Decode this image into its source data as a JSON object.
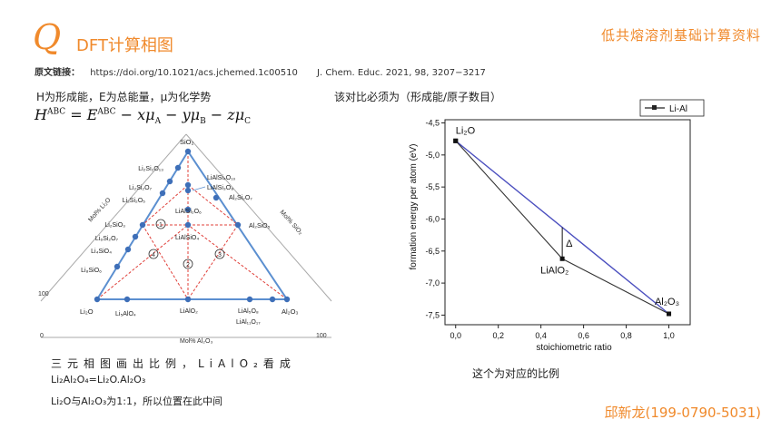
{
  "header": {
    "logo_letter": "Q",
    "title": "DFT计算相图",
    "top_right": "低共熔溶剂基础计算资料"
  },
  "reference": {
    "label": "原文链接：",
    "url": "https://doi.org/10.1021/acs.jchemed.1c00510",
    "citation": "J. Chem. Educ. 2021, 98, 3207−3217"
  },
  "definitions": {
    "text": "H为形成能，E为总能量，μ为化学势"
  },
  "mid_note": "该对比必须为（形成能/原子数目）",
  "explanations": {
    "line1": "三元相图画出比例，LiAlO₂看成",
    "line2": "Li₂Al₂O₄=Li₂O.Al₂O₃",
    "line3": "Li₂O与Al₂O₃为1:1，所以位置在此中间"
  },
  "chart_caption": "这个为对应的比例",
  "footer": "邱新龙(199-0790-5031)",
  "ternary": {
    "apex_top": "SiO₂",
    "apex_left": "Li₂O",
    "apex_right": "Al₂O₃",
    "left_edge_labels": [
      "Li₂Si₂O₁₃",
      "Li₂Si₂O₇",
      "Li₂Si₂O₅",
      "Li₂SiO₃",
      "Li₆Si₂O₇",
      "Li₄SiO₄",
      "Li₈SiO₆"
    ],
    "right_edge_labels": [
      "LiAlSi₄O₁₀",
      "LiAlSi₃O₈",
      "Al₂Si₂O₇",
      "Al₂SiO₅"
    ],
    "bottom_labels": [
      "Li₅AlO₄",
      "LiAlO₂",
      "LiAl₅O₈",
      "LiAl₁₁O₁₇"
    ],
    "inner_labels": [
      "LiAlSi₂O₆",
      "LiAlSiO₄"
    ],
    "region_numbers": [
      "1",
      "2",
      "3",
      "4"
    ],
    "axis_left": "Mol% Li₂O",
    "axis_right": "Mol% SiO₂",
    "axis_bottom": "Mol% Al₂O₃",
    "tick_0": "0",
    "tick_100": "100"
  },
  "chart_data": {
    "type": "line",
    "series": [
      {
        "name": "Li-Al",
        "x": [
          0.0,
          1.0
        ],
        "y": [
          -4.78,
          -7.48
        ]
      },
      {
        "name": "",
        "x": [
          0.0,
          0.5,
          1.0
        ],
        "y": [
          -4.78,
          -6.62,
          -7.48
        ]
      }
    ],
    "point_labels": [
      {
        "text": "Li₂O",
        "x": 0.0,
        "y": -4.78
      },
      {
        "text": "LiAlO₂",
        "x": 0.5,
        "y": -6.62
      },
      {
        "text": "Al₂O₃",
        "x": 1.0,
        "y": -7.48
      }
    ],
    "annotation": "Δ",
    "xlabel": "stoichiometric ratio",
    "ylabel": "formation energy per atom (eV)",
    "xlim": [
      -0.05,
      1.1
    ],
    "ylim": [
      -7.65,
      -4.45
    ],
    "xticks": [
      "0,0",
      "0,2",
      "0,4",
      "0,6",
      "0,8",
      "1,0"
    ],
    "yticks": [
      "-4,5",
      "-5,0",
      "-5,5",
      "-6,0",
      "-6,5",
      "-7,0",
      "-7,5"
    ],
    "legend": "Li-Al",
    "legend_position": "top-right",
    "colors": {
      "hull": "#4b4fbf",
      "main": "#333333"
    }
  },
  "colors": {
    "accent": "#f08a2c",
    "ternary_line": "#5b8fd0",
    "dashed": "#e0403a",
    "dot": "#3e6fb8"
  }
}
